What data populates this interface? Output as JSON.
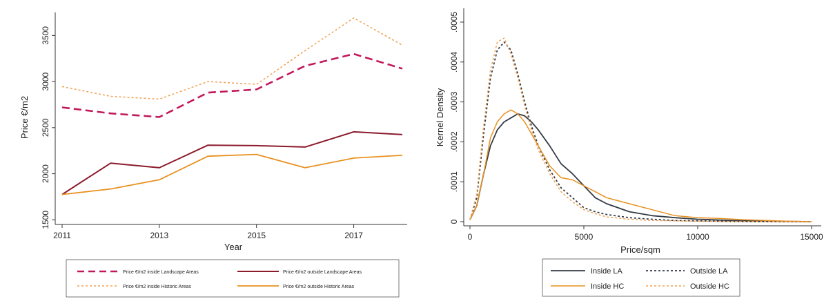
{
  "chart_data": [
    {
      "type": "line",
      "xlabel": "Year",
      "ylabel": "Price €/m2",
      "xlim": [
        2011,
        2018
      ],
      "ylim": [
        1450,
        3750
      ],
      "xticks": [
        "2011",
        "2013",
        "2015",
        "2017"
      ],
      "yticks": [
        "1500",
        "2000",
        "2500",
        "3000",
        "3500"
      ],
      "x": [
        2011,
        2012,
        2013,
        2014,
        2015,
        2016,
        2017,
        2018
      ],
      "grid": false,
      "legend_position": "bottom",
      "series": [
        {
          "name": "Price €/m2 inside Landscape Areas",
          "color": "#c2185b",
          "dash": "long-dash",
          "values": [
            2720,
            2655,
            2615,
            2880,
            2915,
            3170,
            3300,
            3140
          ]
        },
        {
          "name": "Price €/m2 outside Landscape Areas",
          "color": "#8b1a2b",
          "dash": "solid",
          "values": [
            1775,
            2115,
            2065,
            2310,
            2305,
            2290,
            2455,
            2425
          ]
        },
        {
          "name": "Price €/m2 inside Historic Areas",
          "color": "#f0a050",
          "dash": "short-dash",
          "values": [
            2945,
            2840,
            2810,
            3000,
            2970,
            3335,
            3690,
            3395
          ]
        },
        {
          "name": "Price €/m2 outside Historic Areas",
          "color": "#e8911f",
          "dash": "solid",
          "values": [
            1775,
            1835,
            1935,
            2190,
            2210,
            2065,
            2170,
            2200
          ]
        }
      ]
    },
    {
      "type": "line",
      "xlabel": "Price/sqm",
      "ylabel": "Kernel Density",
      "xlim": [
        0,
        15000
      ],
      "ylim": [
        0,
        0.0005
      ],
      "xticks": [
        "0",
        "5000",
        "10000",
        "15000"
      ],
      "yticks": [
        "0",
        ".0001",
        ".0002",
        ".0003",
        ".0004",
        ".0005"
      ],
      "x": [
        0,
        300,
        600,
        900,
        1200,
        1500,
        1800,
        2100,
        2400,
        2700,
        3000,
        3500,
        4000,
        4500,
        5000,
        5500,
        6000,
        7000,
        8000,
        9000,
        10000,
        11000,
        12000,
        13000,
        14000,
        15000
      ],
      "grid": false,
      "legend_position": "bottom",
      "series": [
        {
          "name": "Inside LA",
          "color": "#333b44",
          "dash": "solid",
          "values": [
            5e-06,
            4e-05,
            0.00012,
            0.00019,
            0.00023,
            0.00025,
            0.00026,
            0.00027,
            0.000265,
            0.00025,
            0.00023,
            0.00019,
            0.000145,
            0.00012,
            9e-05,
            6e-05,
            4.5e-05,
            2.5e-05,
            1.5e-05,
            1e-05,
            6e-06,
            4e-06,
            2e-06,
            1e-06,
            5e-07,
            0
          ]
        },
        {
          "name": "Outside LA",
          "color": "#333b44",
          "dash": "dashed",
          "values": [
            5e-06,
            6e-05,
            0.00022,
            0.00036,
            0.00043,
            0.00045,
            0.00043,
            0.00037,
            0.0003,
            0.00024,
            0.00019,
            0.00013,
            8.5e-05,
            6e-05,
            3.5e-05,
            2.5e-05,
            1.8e-05,
            1e-05,
            6e-06,
            3e-06,
            2e-06,
            1e-06,
            5e-07,
            2e-07,
            1e-07,
            0
          ]
        },
        {
          "name": "Inside HC",
          "color": "#e8911f",
          "dash": "solid",
          "values": [
            5e-06,
            4e-05,
            0.00012,
            0.00021,
            0.00025,
            0.00027,
            0.00028,
            0.00027,
            0.00025,
            0.00022,
            0.00019,
            0.00014,
            0.00011,
            0.000105,
            9e-05,
            7.5e-05,
            6e-05,
            4.5e-05,
            3e-05,
            1.5e-05,
            1e-05,
            8e-06,
            5e-06,
            3e-06,
            1e-06,
            0
          ]
        },
        {
          "name": "Outside HC",
          "color": "#f0a050",
          "dash": "dashed",
          "values": [
            5e-06,
            7e-05,
            0.00024,
            0.00038,
            0.00045,
            0.00046,
            0.00042,
            0.00036,
            0.00029,
            0.00023,
            0.00018,
            0.00012,
            7.5e-05,
            5e-05,
            3e-05,
            2e-05,
            1.2e-05,
            6e-06,
            3e-06,
            2e-06,
            1e-06,
            5e-07,
            2e-07,
            1e-07,
            5e-08,
            0
          ]
        }
      ]
    }
  ]
}
